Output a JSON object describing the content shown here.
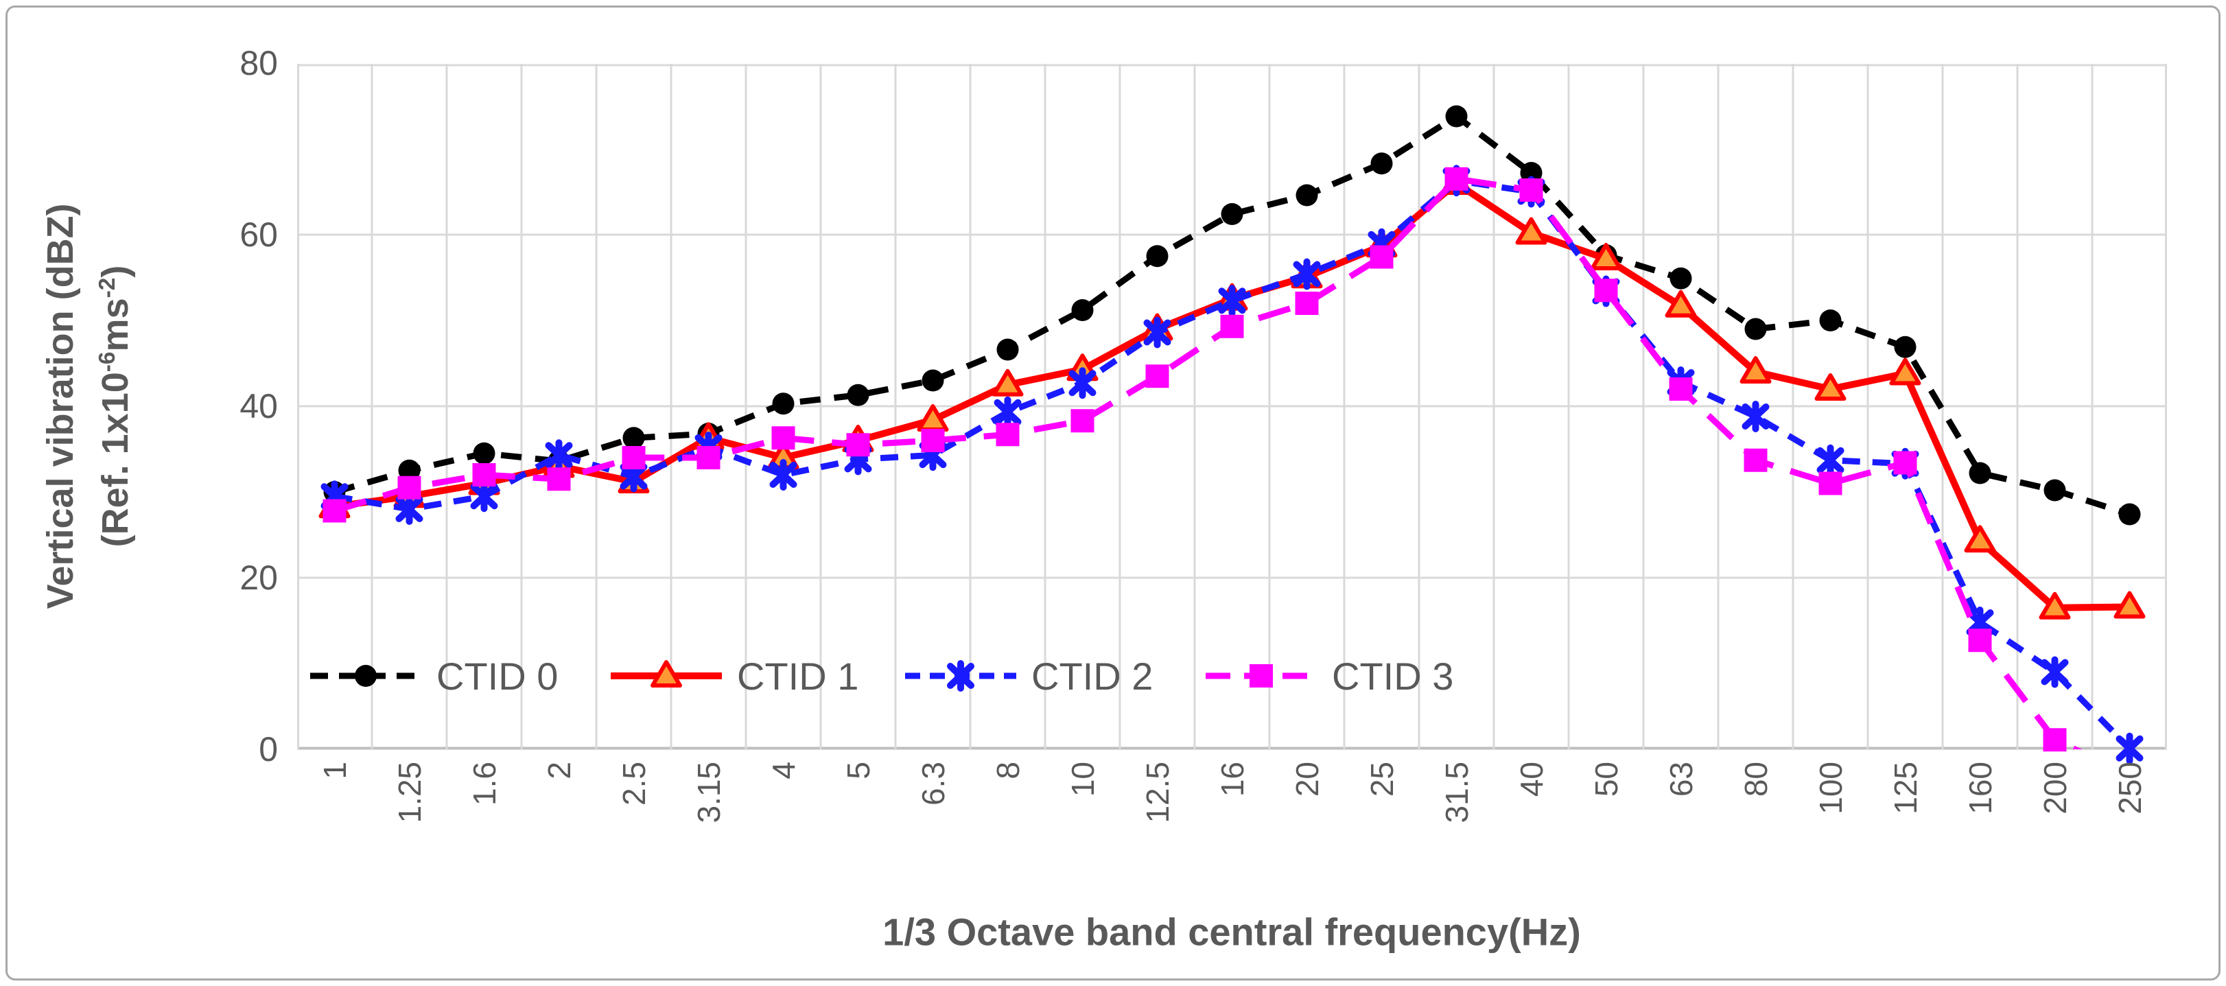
{
  "chart_data": {
    "type": "line",
    "title": "",
    "xlabel": "1/3 Octave band central frequency(Hz)",
    "ylabel_line1": "Vertical vibration (dBZ)",
    "ylabel_line2_parts": [
      {
        "t": "(Ref. 1x10"
      },
      {
        "t": "-6",
        "sup": true
      },
      {
        "t": "ms"
      },
      {
        "t": "-2",
        "sup": true
      },
      {
        "t": ")"
      }
    ],
    "categories": [
      "1",
      "1.25",
      "1.6",
      "2",
      "2.5",
      "3.15",
      "4",
      "5",
      "6.3",
      "8",
      "10",
      "12.5",
      "16",
      "20",
      "25",
      "31.5",
      "40",
      "50",
      "63",
      "80",
      "100",
      "125",
      "160",
      "200",
      "250"
    ],
    "yticks": [
      0,
      20,
      40,
      60,
      80
    ],
    "ylim": [
      0,
      80
    ],
    "grid": true,
    "legend_position": "inside-bottom-left",
    "series": [
      {
        "name": "CTID 0",
        "color": "#000000",
        "marker": "circle",
        "line_style": "dashed",
        "values": [
          30.0,
          32.5,
          34.5,
          33.6,
          36.3,
          36.8,
          40.3,
          41.3,
          43.0,
          46.6,
          51.2,
          57.5,
          62.4,
          64.6,
          68.3,
          73.8,
          67.2,
          57.6,
          54.9,
          49.0,
          50.0,
          46.9,
          32.2,
          30.2,
          27.4
        ]
      },
      {
        "name": "CTID 1",
        "color": "#FF0000",
        "marker": "triangle",
        "marker_fill": "#FF9933",
        "line_style": "solid",
        "values": [
          28.3,
          29.5,
          31.0,
          33.0,
          31.2,
          36.3,
          34.0,
          36.0,
          38.4,
          42.5,
          44.3,
          49.0,
          52.5,
          55.1,
          58.7,
          66.0,
          60.2,
          57.2,
          51.7,
          44.0,
          42.0,
          43.8,
          24.3,
          16.5,
          16.6
        ]
      },
      {
        "name": "CTID 2",
        "color": "#1A1AFF",
        "marker": "asterisk",
        "line_style": "dashed",
        "values": [
          29.5,
          28.0,
          29.5,
          34.3,
          31.8,
          35.2,
          32.0,
          33.8,
          34.3,
          39.3,
          42.7,
          48.6,
          52.3,
          55.4,
          58.9,
          66.3,
          65.0,
          53.4,
          42.8,
          38.8,
          33.7,
          33.3,
          14.8,
          9.0,
          0.1
        ]
      },
      {
        "name": "CTID 3",
        "color": "#FF00FF",
        "marker": "square",
        "line_style": "long-dashed",
        "values": [
          27.8,
          30.5,
          32.0,
          31.5,
          34.0,
          34.0,
          36.3,
          35.5,
          36.0,
          36.7,
          38.3,
          43.5,
          49.3,
          52.0,
          57.4,
          66.5,
          65.2,
          53.5,
          42.0,
          33.7,
          31.0,
          33.4,
          12.7,
          1.1,
          -3.0
        ]
      }
    ],
    "colors": {
      "grid": "#D9D9D9",
      "axis": "#BFBFBF",
      "text": "#595959"
    }
  }
}
